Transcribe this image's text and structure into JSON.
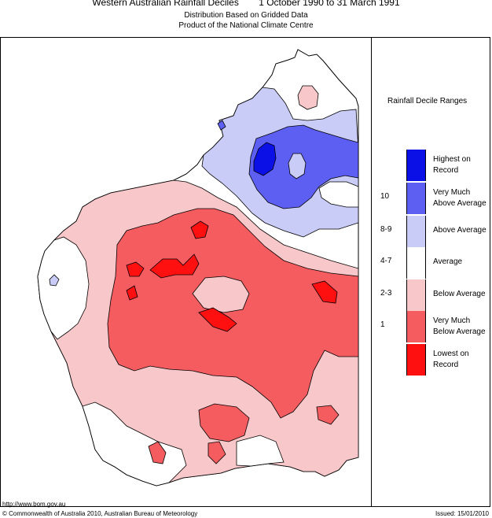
{
  "header": {
    "title": "Western Australian Rainfall Deciles",
    "dates": "1 October 1990 to 31 March 1991",
    "subtitle_1": "Distribution Based on Gridded Data",
    "subtitle_2": "Product of the National Climate Centre"
  },
  "legend": {
    "title": "Rainfall Decile Ranges",
    "items": [
      {
        "range": "",
        "label_1": "Highest on",
        "label_2": "Record",
        "color": "#0a10e6"
      },
      {
        "range": "10",
        "label_1": "Very Much",
        "label_2": "Above Average",
        "color": "#5d5ff2"
      },
      {
        "range": "8-9",
        "label_1": "Above Average",
        "label_2": "",
        "color": "#c9ccf6"
      },
      {
        "range": "4-7",
        "label_1": "Average",
        "label_2": "",
        "color": "#ffffff"
      },
      {
        "range": "2-3",
        "label_1": "Below Average",
        "label_2": "",
        "color": "#f8c7c9"
      },
      {
        "range": "1",
        "label_1": "Very Much",
        "label_2": "Below Average",
        "color": "#f45c60"
      },
      {
        "range": "",
        "label_1": "Lowest on",
        "label_2": "Record",
        "color": "#ff1010"
      }
    ]
  },
  "footer": {
    "url": "http://www.bom.gov.au",
    "copyright": "© Commonwealth of Australia 2010, Australian Bureau of Meteorology",
    "issued": "Issued: 15/01/2010"
  }
}
